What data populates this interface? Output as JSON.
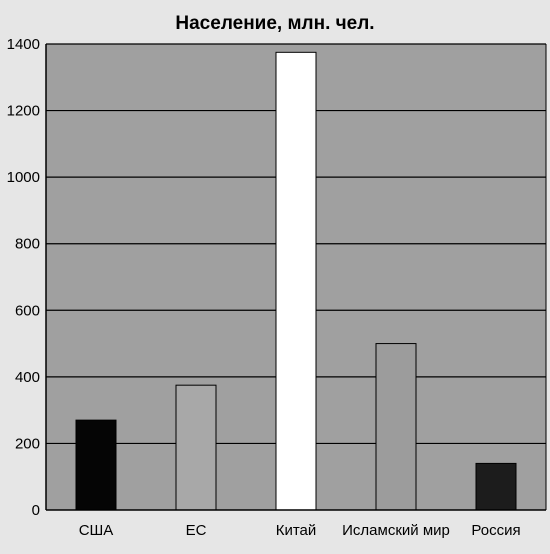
{
  "chart_data": {
    "type": "bar",
    "title": "Население, млн. чел.",
    "xlabel": "",
    "ylabel": "",
    "categories": [
      "США",
      "ЕС",
      "Китай",
      "Исламский мир",
      "Россия"
    ],
    "values": [
      270,
      375,
      1375,
      500,
      140
    ],
    "colors": [
      "#050505",
      "#a8a8a8",
      "#ffffff",
      "#9c9c9c",
      "#1c1c1c"
    ],
    "ylim": [
      0,
      1400
    ],
    "yticks": [
      0,
      200,
      400,
      600,
      800,
      1000,
      1200,
      1400
    ],
    "grid": true,
    "legend": "none",
    "plot_background": "#a0a0a0"
  }
}
